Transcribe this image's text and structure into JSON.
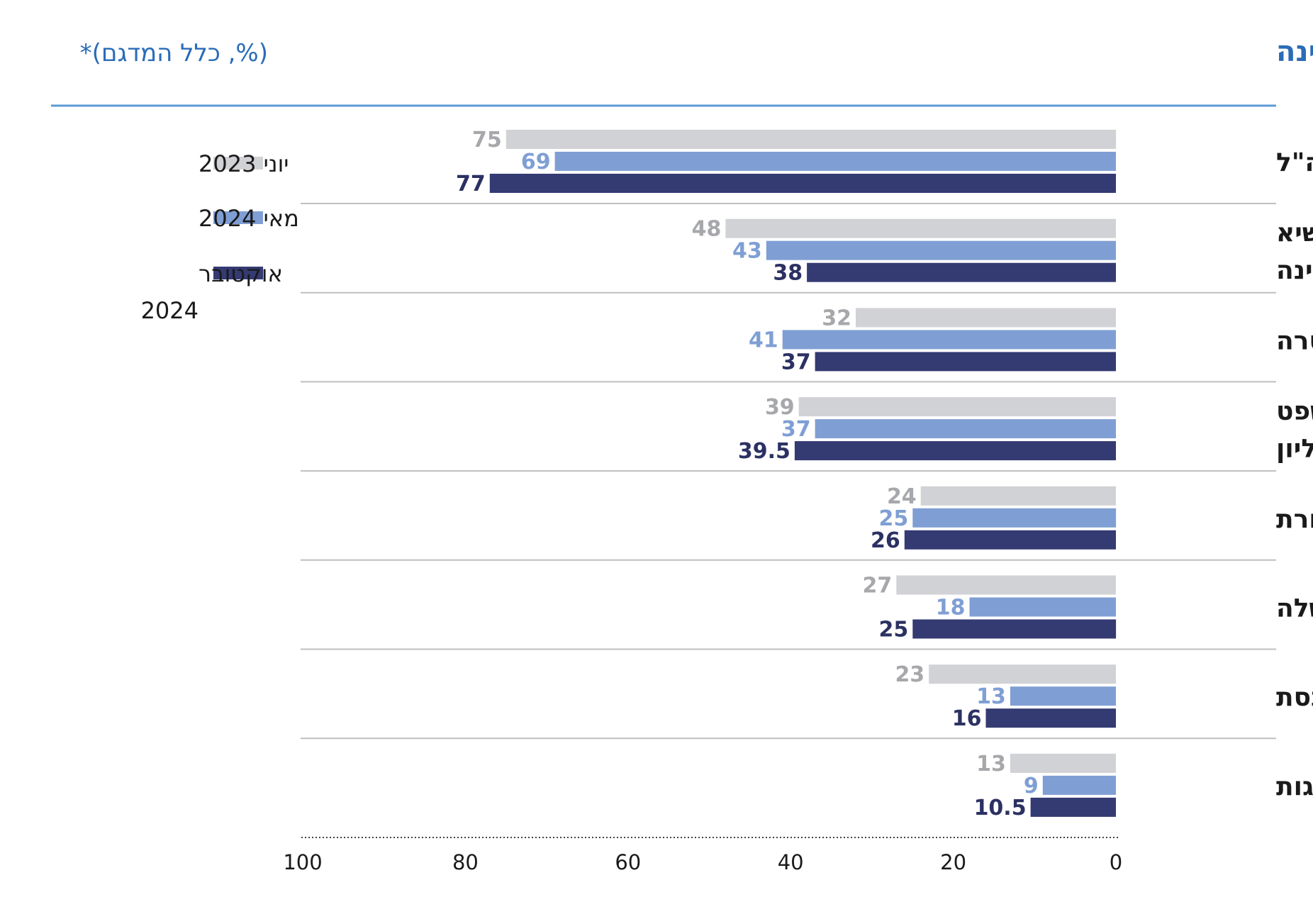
{
  "chart_data": {
    "type": "bar",
    "orientation": "horizontal",
    "title": "נותנים אמון רב או די רב בכל אחד ממוסדות המדינה",
    "subtitle": "(%, כלל המדגם)*",
    "categories": [
      [
        "צה\"ל"
      ],
      [
        "נשיא",
        "המדינה"
      ],
      [
        "המשטרה"
      ],
      [
        "בית המשפט",
        "העליון"
      ],
      [
        "התקשורת"
      ],
      [
        "הממשלה"
      ],
      [
        "הכנסת"
      ],
      [
        "המפלגות"
      ]
    ],
    "series": [
      {
        "name": "יוני 2023",
        "values": [
          75,
          48,
          32,
          39,
          24,
          27,
          23,
          13
        ],
        "color": "#d1d2d5",
        "label_color": "#a7a8ab"
      },
      {
        "name": "מאי 2024",
        "values": [
          69,
          43,
          41,
          37,
          25,
          18,
          13,
          9
        ],
        "color": "#7f9fd4",
        "label_color": "#7f9fd4"
      },
      {
        "name": "אוקטובר 2024",
        "values": [
          77,
          38,
          37,
          39.5,
          26,
          25,
          16,
          10.5
        ],
        "color": "#343a72",
        "label_color": "#2c3163"
      }
    ],
    "xlim": [
      0,
      100
    ],
    "xticks": [
      0,
      20,
      40,
      60,
      80,
      100
    ],
    "x_direction": "right-to-left",
    "legend_position": "left",
    "colors": {
      "title": "#2a6cb8",
      "rule": "#5b9bd5",
      "divider": "#bfbfbf",
      "tick_text": "#1a1a1a"
    }
  }
}
